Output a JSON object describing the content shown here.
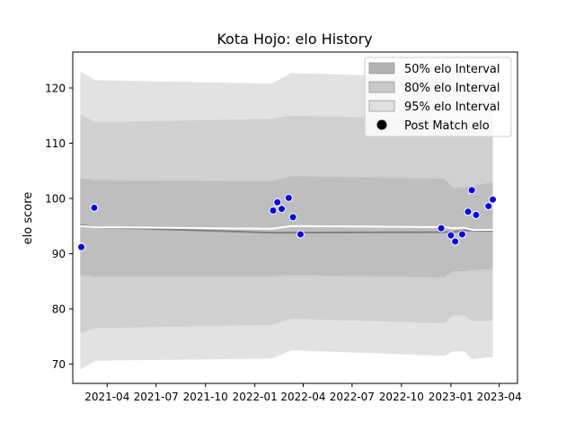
{
  "chart_data": {
    "type": "line",
    "title": "Kota Hojo: elo History",
    "xlabel": "",
    "ylabel": "elo score",
    "xlim": [
      "2021-01-27",
      "2023-05-05"
    ],
    "ylim": [
      66.5,
      126.5
    ],
    "x_ticks": [
      "2021-04",
      "2021-07",
      "2021-10",
      "2022-01",
      "2022-04",
      "2022-07",
      "2022-10",
      "2023-01",
      "2023-04"
    ],
    "y_ticks": [
      70,
      80,
      90,
      100,
      110,
      120
    ],
    "legend_position": "top-right",
    "colors": {
      "band95": "#e2e2e2",
      "band80": "#d0d0d0",
      "band50": "#bebebe",
      "mean_line": "#808080",
      "median_line": "#ffffff",
      "points": "#0000ee",
      "point_edge": "#ffffff"
    },
    "legend": [
      {
        "label": "50% elo Interval",
        "kind": "band50"
      },
      {
        "label": "80% elo Interval",
        "kind": "band80"
      },
      {
        "label": "95% elo Interval",
        "kind": "band95"
      },
      {
        "label": "Post Match elo",
        "kind": "point"
      }
    ],
    "bands": {
      "x": [
        "2021-02-10",
        "2021-03-10",
        "2022-02-01",
        "2022-03-10",
        "2022-12-20",
        "2023-01-05",
        "2023-01-25",
        "2023-02-10",
        "2023-03-20"
      ],
      "p95": {
        "upper": [
          123.0,
          121.4,
          120.8,
          122.7,
          121.9,
          123.0,
          123.0,
          121.2,
          121.4
        ],
        "lower": [
          69.0,
          70.6,
          71.0,
          72.5,
          71.5,
          72.3,
          72.3,
          70.9,
          71.3
        ]
      },
      "p80": {
        "upper": [
          115.2,
          113.8,
          114.4,
          115.0,
          114.3,
          112.2,
          112.3,
          113.7,
          114.0
        ],
        "lower": [
          75.6,
          76.5,
          77.1,
          78.2,
          77.4,
          78.8,
          78.8,
          77.8,
          77.8
        ]
      },
      "p50": {
        "upper": [
          103.7,
          103.3,
          103.1,
          104.0,
          103.6,
          101.9,
          102.0,
          102.3,
          102.9
        ],
        "lower": [
          86.1,
          85.8,
          85.9,
          86.1,
          85.7,
          86.8,
          86.8,
          87.0,
          87.2
        ]
      }
    },
    "mean_line": {
      "x": [
        "2021-02-10",
        "2021-03-10",
        "2022-02-01",
        "2022-03-10",
        "2022-12-20",
        "2023-01-05",
        "2023-01-25",
        "2023-02-10",
        "2023-03-20"
      ],
      "y": [
        95.2,
        94.8,
        93.8,
        93.8,
        93.9,
        93.9,
        94.2,
        94.2,
        94.1
      ]
    },
    "median_line": {
      "x": [
        "2021-02-10",
        "2021-03-10",
        "2022-02-01",
        "2022-03-10",
        "2022-12-20",
        "2023-01-05",
        "2023-01-25",
        "2023-02-10",
        "2023-03-20"
      ],
      "y": [
        95.0,
        94.8,
        94.5,
        95.0,
        94.8,
        94.6,
        94.7,
        94.3,
        94.3
      ]
    },
    "points": {
      "x": [
        "2021-02-12",
        "2021-03-08",
        "2022-02-04",
        "2022-02-12",
        "2022-02-20",
        "2022-03-05",
        "2022-03-13",
        "2022-03-27",
        "2022-12-14",
        "2023-01-01",
        "2023-01-09",
        "2023-01-22",
        "2023-02-02",
        "2023-02-09",
        "2023-02-17",
        "2023-03-12",
        "2023-03-20"
      ],
      "y": [
        91.2,
        98.3,
        97.8,
        99.3,
        98.1,
        100.1,
        96.6,
        93.5,
        94.6,
        93.3,
        92.2,
        93.5,
        97.6,
        101.5,
        97.0,
        98.6,
        99.8
      ]
    }
  }
}
